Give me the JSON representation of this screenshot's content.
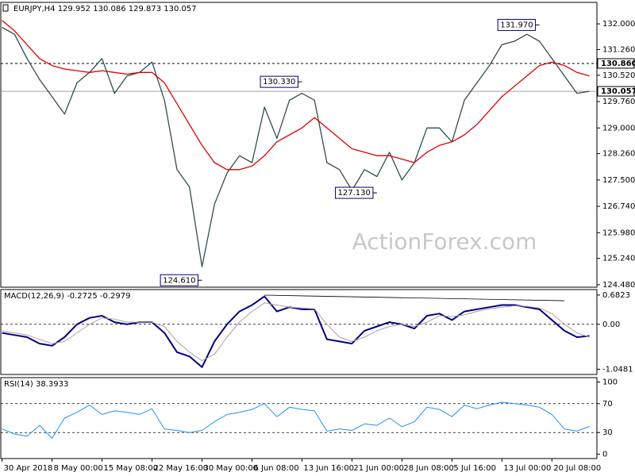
{
  "chart_data": [
    {
      "type": "line",
      "title": "EURJPY,H4  129.952 130.086 129.873 130.057",
      "watermark": "ActionForex.com",
      "xlim": [
        -0.1,
        47.6
      ],
      "ylim": [
        124.41,
        132.62
      ],
      "yticks": [
        {
          "value": 132.0,
          "label": "132.000"
        },
        {
          "value": 131.26,
          "label": "131.260"
        },
        {
          "value": 130.52,
          "label": "130.520"
        },
        {
          "value": 129.76,
          "label": "129.760"
        },
        {
          "value": 129.0,
          "label": "129.000"
        },
        {
          "value": 128.26,
          "label": "128.260"
        },
        {
          "value": 127.5,
          "label": "127.500"
        },
        {
          "value": 126.74,
          "label": "126.740"
        },
        {
          "value": 125.98,
          "label": "125.980"
        },
        {
          "value": 125.24,
          "label": "125.240"
        },
        {
          "value": 124.48,
          "label": "124.480"
        }
      ],
      "hlines": [
        {
          "value": 130.86,
          "label": "130.860",
          "style": "dashed",
          "color": "#000000"
        },
        {
          "value": 130.057,
          "label": "130.057",
          "style": "solid",
          "color": "#a0a0a0"
        }
      ],
      "annotations": [
        {
          "x": 16,
          "value": 124.61,
          "label": "124.610"
        },
        {
          "x": 24,
          "value": 130.33,
          "label": "130.330"
        },
        {
          "x": 30,
          "value": 127.13,
          "label": "127.130"
        },
        {
          "x": 43,
          "value": 131.97,
          "label": "131.970"
        }
      ],
      "series": [
        {
          "color": "#2f4f4f",
          "values": [
            131.9,
            131.7,
            131.0,
            130.4,
            129.9,
            129.4,
            130.3,
            130.6,
            131.0,
            130.0,
            130.5,
            130.6,
            130.9,
            129.8,
            127.8,
            127.3,
            125.0,
            126.8,
            127.7,
            128.2,
            128.0,
            129.6,
            128.7,
            129.8,
            130.0,
            129.8,
            128.0,
            127.8,
            127.2,
            127.8,
            127.6,
            128.3,
            127.5,
            128.0,
            129.0,
            129.0,
            128.6,
            129.8,
            130.3,
            130.8,
            131.4,
            131.5,
            131.7,
            131.5,
            131.0,
            130.5,
            130.0,
            130.057
          ]
        },
        {
          "color": "#e00000",
          "values": [
            132.1,
            131.8,
            131.4,
            131.0,
            130.8,
            130.7,
            130.65,
            130.6,
            130.65,
            130.6,
            130.55,
            130.6,
            130.6,
            130.3,
            129.7,
            129.1,
            128.5,
            128.0,
            127.8,
            127.8,
            127.9,
            128.2,
            128.6,
            128.8,
            129.0,
            129.3,
            129.0,
            128.7,
            128.4,
            128.3,
            128.2,
            128.2,
            128.1,
            128.0,
            128.3,
            128.5,
            128.6,
            128.8,
            129.1,
            129.5,
            129.9,
            130.2,
            130.5,
            130.8,
            130.9,
            130.8,
            130.6,
            130.5
          ]
        }
      ]
    },
    {
      "type": "line",
      "title": "MACD(12,26,9) -0.2725 -0.2979",
      "xlim": [
        -0.1,
        47.6
      ],
      "ylim": [
        -1.17,
        0.81
      ],
      "yticks": [
        0.6823,
        {
          "value": 0,
          "label": "0.00"
        },
        -1.0481
      ],
      "levels": [
        0
      ],
      "series": [
        {
          "color": "#000080",
          "width": 2,
          "values": [
            -0.2,
            -0.25,
            -0.3,
            -0.45,
            -0.5,
            -0.3,
            0.0,
            0.15,
            0.2,
            0.05,
            0.0,
            0.05,
            0.05,
            -0.2,
            -0.65,
            -0.75,
            -1.0,
            -0.4,
            0.0,
            0.3,
            0.45,
            0.65,
            0.3,
            0.4,
            0.35,
            0.35,
            -0.35,
            -0.4,
            -0.45,
            -0.15,
            -0.05,
            0.05,
            0.0,
            -0.1,
            0.2,
            0.25,
            0.1,
            0.3,
            0.35,
            0.4,
            0.45,
            0.45,
            0.4,
            0.35,
            0.1,
            -0.15,
            -0.3,
            -0.2725
          ]
        },
        {
          "color": "#b0a0a0",
          "width": 1,
          "values": [
            -0.15,
            -0.2,
            -0.25,
            -0.35,
            -0.45,
            -0.4,
            -0.2,
            0.0,
            0.15,
            0.12,
            0.05,
            0.05,
            0.05,
            -0.05,
            -0.4,
            -0.65,
            -0.85,
            -0.7,
            -0.3,
            0.05,
            0.3,
            0.5,
            0.45,
            0.4,
            0.38,
            0.36,
            0.0,
            -0.3,
            -0.4,
            -0.3,
            -0.15,
            -0.05,
            0.0,
            -0.05,
            0.05,
            0.2,
            0.18,
            0.22,
            0.3,
            0.36,
            0.4,
            0.43,
            0.42,
            0.38,
            0.25,
            0.0,
            -0.2,
            -0.2979
          ]
        }
      ],
      "trendline": {
        "x": [
          21,
          45
        ],
        "values": [
          0.68,
          0.55
        ]
      }
    },
    {
      "type": "line",
      "title": "RSI(14) 38.3933",
      "xlim": [
        -0.1,
        47.6
      ],
      "ylim": [
        -6,
        106
      ],
      "yticks": [
        100,
        70,
        30,
        0
      ],
      "levels": [
        70,
        30
      ],
      "xticks": [
        {
          "value": 0,
          "label": "30 Apr 2018"
        },
        {
          "value": 4,
          "label": "8 May 00:00"
        },
        {
          "value": 8,
          "label": "15 May 08:00"
        },
        {
          "value": 12,
          "label": "22 May 16:00"
        },
        {
          "value": 16,
          "label": "30 May 00:00"
        },
        {
          "value": 20,
          "label": "6 Jun 08:00"
        },
        {
          "value": 24,
          "label": "13 Jun 16:00"
        },
        {
          "value": 28,
          "label": "21 Jun 00:00"
        },
        {
          "value": 32,
          "label": "28 Jun 08:00"
        },
        {
          "value": 36,
          "label": "5 Jul 16:00"
        },
        {
          "value": 40,
          "label": "13 Jul 00:00"
        },
        {
          "value": 44,
          "label": "20 Jul 08:00"
        }
      ],
      "series": [
        {
          "color": "#1e90ff",
          "width": 1,
          "values": [
            35,
            28,
            25,
            40,
            22,
            50,
            58,
            68,
            55,
            60,
            58,
            55,
            63,
            35,
            33,
            30,
            33,
            45,
            55,
            58,
            62,
            70,
            52,
            65,
            62,
            60,
            32,
            35,
            33,
            42,
            40,
            50,
            38,
            45,
            65,
            62,
            52,
            68,
            63,
            68,
            72,
            70,
            68,
            65,
            55,
            35,
            32,
            38.3933
          ]
        }
      ]
    }
  ]
}
